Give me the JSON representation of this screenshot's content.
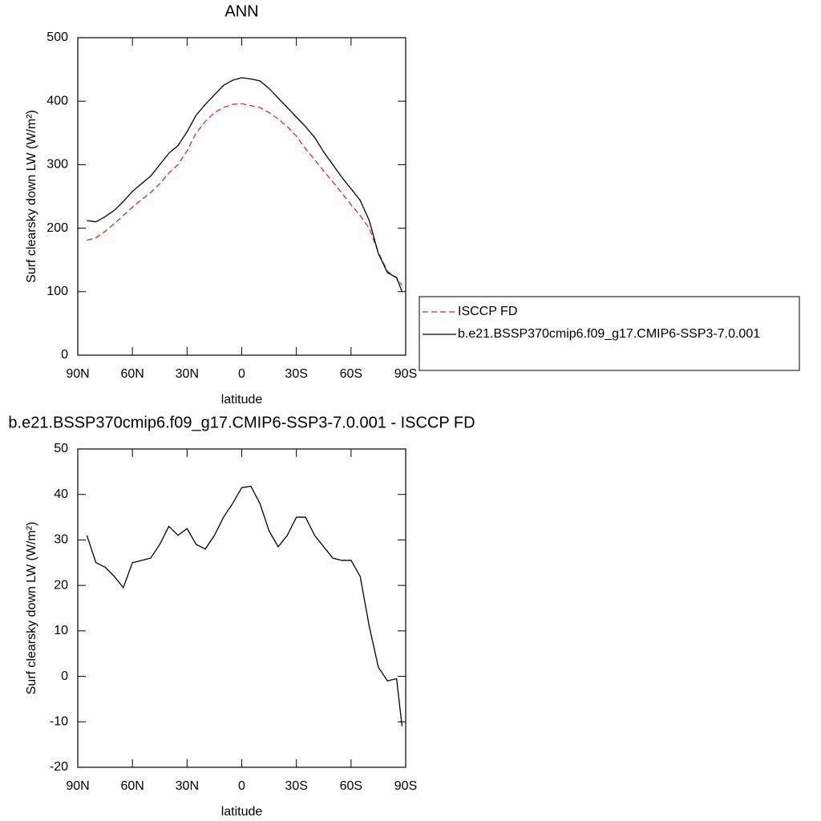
{
  "chart_data": [
    {
      "type": "line",
      "title": "ANN",
      "xlabel": "latitude",
      "ylabel": "Surf clearsky down LW (W/m²)",
      "x": [
        85,
        80,
        75,
        70,
        65,
        60,
        55,
        50,
        45,
        40,
        35,
        30,
        25,
        20,
        15,
        10,
        5,
        0,
        -5,
        -10,
        -15,
        -20,
        -25,
        -30,
        -35,
        -40,
        -45,
        -50,
        -55,
        -60,
        -65,
        -70,
        -75,
        -80,
        -85,
        -88
      ],
      "series": [
        {
          "name": "ISCCP FD",
          "color": "#e8222a",
          "line_style": "dashed",
          "values": [
            181,
            185,
            195,
            207,
            220,
            233,
            245,
            256,
            270,
            287,
            300,
            322,
            350,
            368,
            382,
            390,
            395,
            396,
            393,
            390,
            382,
            372,
            360,
            345,
            325,
            308,
            290,
            273,
            255,
            237,
            220,
            200,
            162,
            132,
            122,
            110
          ]
        },
        {
          "name": "b.e21.BSSP370cmip6.f09_g17.CMIP6-SSP3-7.0.001",
          "color": "#000000",
          "line_style": "solid",
          "values": [
            212,
            210,
            218,
            228,
            242,
            258,
            270,
            282,
            300,
            318,
            330,
            352,
            378,
            395,
            410,
            425,
            433,
            437,
            435,
            432,
            420,
            405,
            390,
            375,
            360,
            343,
            320,
            300,
            280,
            262,
            244,
            212,
            160,
            130,
            122,
            100
          ]
        }
      ],
      "xlim": [
        90,
        -90
      ],
      "xticks": [
        {
          "value": 90,
          "label": "90N"
        },
        {
          "value": 60,
          "label": "60N"
        },
        {
          "value": 30,
          "label": "30N"
        },
        0,
        {
          "value": -30,
          "label": "30S"
        },
        {
          "value": -60,
          "label": "60S"
        },
        {
          "value": -90,
          "label": "90S"
        }
      ],
      "ylim": [
        0,
        500
      ],
      "yticks": [
        0,
        100,
        200,
        300,
        400,
        500
      ],
      "legend_position": "right"
    },
    {
      "type": "line",
      "title": "b.e21.BSSP370cmip6.f09_g17.CMIP6-SSP3-7.0.001 - ISCCP FD",
      "xlabel": "latitude",
      "ylabel": "Surf clearsky down LW (W/m²)",
      "x": [
        85,
        80,
        75,
        70,
        65,
        60,
        55,
        50,
        45,
        40,
        35,
        30,
        25,
        20,
        15,
        10,
        5,
        0,
        -5,
        -10,
        -15,
        -20,
        -25,
        -30,
        -35,
        -40,
        -45,
        -50,
        -55,
        -60,
        -65,
        -70,
        -75,
        -80,
        -85,
        -88
      ],
      "values": [
        31,
        25,
        24,
        22,
        19.5,
        25,
        25.5,
        26,
        29,
        33,
        31,
        32.5,
        29,
        28,
        31,
        35,
        38,
        41.5,
        41.8,
        38,
        32,
        28.5,
        31,
        35,
        35,
        31,
        28.5,
        26,
        25.5,
        25.5,
        22,
        11,
        2,
        -1,
        -0.5,
        -11
      ],
      "color": "#000000",
      "xlim": [
        90,
        -90
      ],
      "xticks": [
        {
          "value": 90,
          "label": "90N"
        },
        {
          "value": 60,
          "label": "60N"
        },
        {
          "value": 30,
          "label": "30N"
        },
        0,
        {
          "value": -30,
          "label": "30S"
        },
        {
          "value": -60,
          "label": "60S"
        },
        {
          "value": -90,
          "label": "90S"
        }
      ],
      "ylim": [
        -20,
        50
      ],
      "yticks": [
        -20,
        -10,
        0,
        10,
        20,
        30,
        40,
        50
      ]
    }
  ]
}
